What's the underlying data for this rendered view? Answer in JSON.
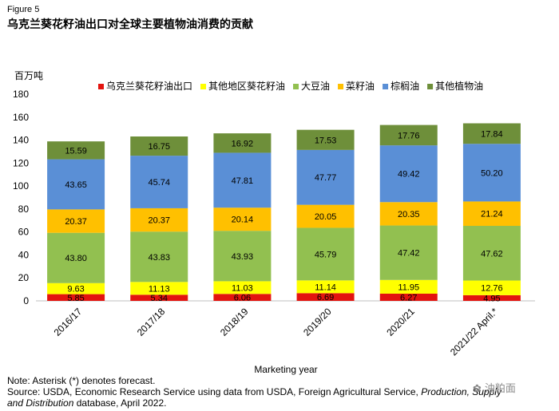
{
  "figure_label": "Figure 5",
  "title": "乌克兰葵花籽油出口对全球主要植物油消费的贡献",
  "unit_label": "百万吨",
  "chart_data": {
    "type": "bar",
    "stacked": true,
    "title": "乌克兰葵花籽油出口对全球主要植物油消费的贡献",
    "xlabel": "Marketing year",
    "ylabel": "百万吨",
    "ylim": [
      0,
      180
    ],
    "yticks": [
      0,
      20,
      40,
      60,
      80,
      100,
      120,
      140,
      160,
      180
    ],
    "categories": [
      "2016/17",
      "2017/18",
      "2018/19",
      "2019/20",
      "2020/21",
      "2021/22 April.*"
    ],
    "series": [
      {
        "name": "乌克兰葵花籽油出口",
        "color": "#e3140f",
        "values": [
          5.85,
          5.34,
          6.06,
          6.69,
          6.27,
          4.95
        ]
      },
      {
        "name": "其他地区葵花籽油",
        "color": "#ffff00",
        "values": [
          9.63,
          11.13,
          11.03,
          11.14,
          11.95,
          12.76
        ]
      },
      {
        "name": "大豆油",
        "color": "#92c050",
        "values": [
          43.8,
          43.83,
          43.93,
          45.79,
          47.42,
          47.62
        ]
      },
      {
        "name": "菜籽油",
        "color": "#ffc000",
        "values": [
          20.37,
          20.37,
          20.14,
          20.05,
          20.35,
          21.24
        ]
      },
      {
        "name": "棕榈油",
        "color": "#5a8fd6",
        "values": [
          43.65,
          45.74,
          47.81,
          47.77,
          49.42,
          50.2
        ]
      },
      {
        "name": "其他植物油",
        "color": "#6e8f3a",
        "values": [
          15.59,
          16.75,
          16.92,
          17.53,
          17.76,
          17.84
        ]
      }
    ],
    "labels": [
      [
        "5.85",
        "9.63",
        "43.80",
        "20.37",
        "43.65",
        "15.59"
      ],
      [
        "5.34",
        "11.13",
        "43.83",
        "20.37",
        "45.74",
        "16.75"
      ],
      [
        "6.06",
        "11.03",
        "43.93",
        "20.14",
        "47.81",
        "16.92"
      ],
      [
        "6.69",
        "11.14",
        "45.79",
        "20.05",
        "47.77",
        "17.53"
      ],
      [
        "6.27",
        "11.95",
        "47.42",
        "20.35",
        "49.42",
        "17.76"
      ],
      [
        "4.95",
        "12.76",
        "47.62",
        "21.24",
        "50.20",
        "17.84"
      ]
    ],
    "legend_position": "top"
  },
  "note": {
    "line1": "Note: Asterisk (*) denotes forecast.",
    "line2_prefix": "Source: USDA, Economic Research Service using data from USDA, Foreign Agricultural Service, ",
    "line2_italic": "Production, Supply",
    "line3_italic": "and Distribution",
    "line3_suffix": " database, April 2022."
  },
  "watermark": {
    "text": "油粕面",
    "icon": "wechat-icon"
  }
}
